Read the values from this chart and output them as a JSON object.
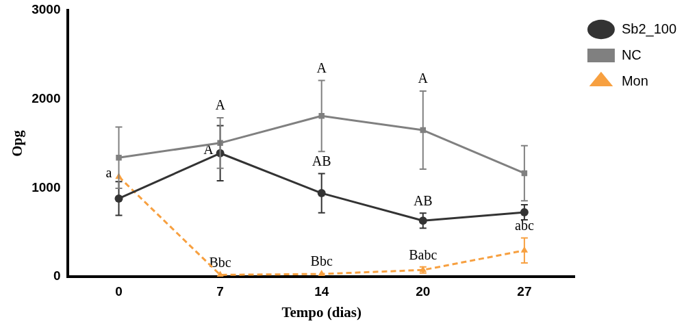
{
  "chart_data": {
    "type": "line",
    "xlabel": "Tempo (dias)",
    "ylabel": "Opg",
    "categories": [
      "0",
      "7",
      "14",
      "20",
      "27"
    ],
    "ylim": [
      0,
      3000
    ],
    "yticks": [
      0,
      1000,
      2000,
      3000
    ],
    "grid": false,
    "legend": "right",
    "series": [
      {
        "name": "Sb2_100",
        "color": "#333333",
        "marker": "circle",
        "line_style": "solid",
        "values": [
          880,
          1390,
          940,
          630,
          725
        ],
        "errors": [
          190,
          310,
          220,
          85,
          85
        ]
      },
      {
        "name": "NC",
        "color": "#808080",
        "marker": "square",
        "line_style": "solid",
        "values": [
          1340,
          1505,
          1810,
          1650,
          1165
        ],
        "errors": [
          345,
          285,
          400,
          440,
          310
        ]
      },
      {
        "name": "Mon",
        "color": "#f7a040",
        "marker": "triangle",
        "line_style": "dashed",
        "values": [
          1125,
          20,
          30,
          75,
          295
        ],
        "errors": [
          null,
          null,
          null,
          35,
          140
        ]
      }
    ],
    "annotations": [
      {
        "text": "a",
        "x": "0",
        "y": 1125
      },
      {
        "text": "A",
        "x": "7",
        "y": 1790
      },
      {
        "text": "A",
        "x": "7",
        "y": 1390
      },
      {
        "text": "A",
        "x": "14",
        "y": 2210
      },
      {
        "text": "AB",
        "x": "14",
        "y": 1160
      },
      {
        "text": "A",
        "x": "20",
        "y": 2090
      },
      {
        "text": "AB",
        "x": "20",
        "y": 715
      },
      {
        "text": "abc",
        "x": "27",
        "y": 435
      },
      {
        "text": "Bbc",
        "x": "7",
        "y": 20
      },
      {
        "text": "Bbc",
        "x": "14",
        "y": 30
      },
      {
        "text": "Babc",
        "x": "20",
        "y": 105
      }
    ]
  }
}
